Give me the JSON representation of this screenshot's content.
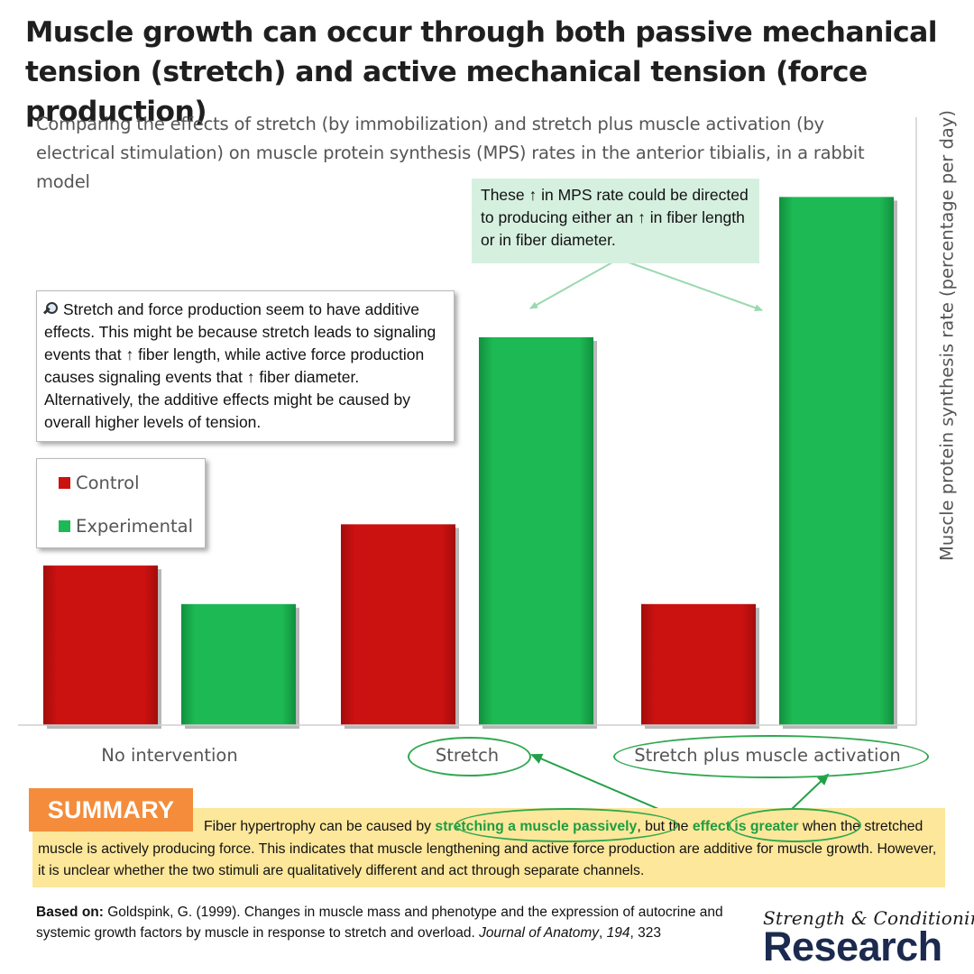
{
  "title": "Muscle growth can occur through both passive mechanical tension (stretch) and active mechanical tension (force production)",
  "chart_data": {
    "type": "bar",
    "title": "Comparing the effects of stretch (by immobilization) and stretch plus muscle activation (by electrical stimulation) on muscle protein synthesis (MPS) rates in the anterior tibialis, in a rabbit model",
    "ylabel": "Muscle protein synthesis rate (percentage per day)",
    "xlabel": "",
    "categories": [
      "No intervention",
      "Stretch",
      "Stretch plus muscle activation"
    ],
    "series": [
      {
        "name": "Control",
        "color": "#cc1111",
        "values": [
          29,
          36.5,
          22
        ]
      },
      {
        "name": "Experimental",
        "color": "#1db954",
        "values": [
          22,
          70.5,
          96
        ]
      }
    ],
    "ylim": [
      0,
      100
    ],
    "grid": false,
    "legend_position": "left"
  },
  "note_text": "Stretch and force production seem to have additive effects. This might be because stretch leads to signaling events that ↑ fiber length, while active force production causes signaling events that ↑ fiber diameter. Alternatively, the additive effects might be caused by overall higher levels of tension.",
  "mps_callout": "These ↑ in MPS rate could be directed to producing either an ↑ in fiber length or in fiber diameter.",
  "summary": {
    "label": "SUMMARY",
    "part1": "Fiber hypertrophy can be caused by ",
    "highlight1": "stretching a muscle passively",
    "part2": ", but the ",
    "highlight2": "effect is greater",
    "part3": " when the stretched muscle is actively producing force. This indicates that muscle lengthening and active force production are additive for muscle growth. However, it is unclear whether the two stimuli are qualitatively different and act through separate channels."
  },
  "reference": {
    "lead": "Based on:",
    "text": " Goldspink, G. (1999). Changes in muscle mass and phenotype and the expression of autocrine and systemic growth factors by muscle in response to stretch and overload. ",
    "journal": "Journal of Anatomy",
    "sep": ", ",
    "volume": "194",
    "page": ", 323"
  },
  "logo": {
    "top": "Strength & Conditioning",
    "main": "Research"
  }
}
